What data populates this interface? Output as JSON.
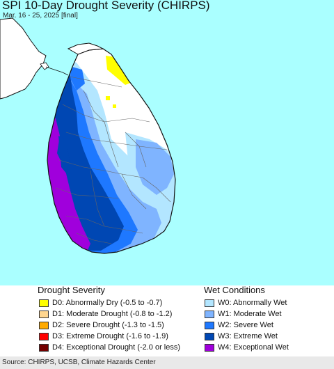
{
  "map": {
    "title": "SPI 10-Day Drought Severity (CHIRPS)",
    "subtitle": "Mar. 16 - 25, 2025 [final]",
    "colors": {
      "ocean": "#aaffff",
      "land_base": "#ffffff",
      "W0": "#b3e6ff",
      "W1": "#7fb4ff",
      "W2": "#1e78ff",
      "W3": "#0047b3",
      "W4": "#a000dc",
      "D0": "#ffff00"
    }
  },
  "legend": {
    "drought_heading": "Drought Severity",
    "wet_heading": "Wet Conditions",
    "drought_items": [
      {
        "code": "D0",
        "label": "D0: Abnormally Dry (-0.5 to -0.7)",
        "color": "#ffff00"
      },
      {
        "code": "D1",
        "label": "D1: Moderate Drought (-0.8 to -1.2)",
        "color": "#ffd68f"
      },
      {
        "code": "D2",
        "label": "D2: Severe Drought (-1.3 to -1.5)",
        "color": "#ffaa00"
      },
      {
        "code": "D3",
        "label": "D3: Extreme Drought (-1.6 to -1.9)",
        "color": "#ff0000"
      },
      {
        "code": "D4",
        "label": "D4: Exceptional Drought (-2.0 or less)",
        "color": "#730000"
      }
    ],
    "wet_items": [
      {
        "code": "W0",
        "label": "W0: Abnormally Wet",
        "color": "#b3e6ff"
      },
      {
        "code": "W1",
        "label": "W1: Moderate Wet",
        "color": "#7fb4ff"
      },
      {
        "code": "W2",
        "label": "W2: Severe Wet",
        "color": "#1e78ff"
      },
      {
        "code": "W3",
        "label": "W3: Extreme Wet",
        "color": "#0047b3"
      },
      {
        "code": "W4",
        "label": "W4: Exceptional Wet",
        "color": "#a000dc"
      }
    ]
  },
  "footer": {
    "source": "Source: CHIRPS, UCSB, Climate Hazards Center"
  }
}
